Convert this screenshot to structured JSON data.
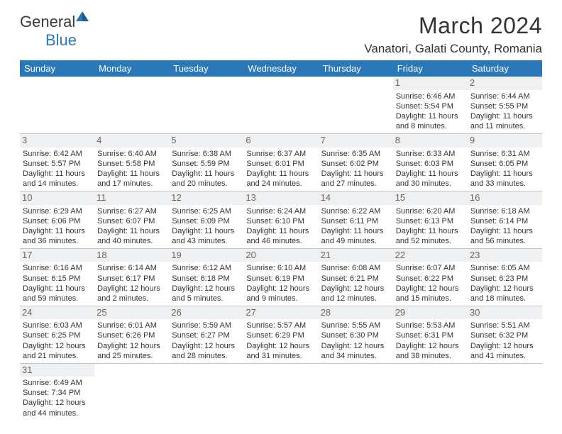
{
  "logo": {
    "text1": "General",
    "text2": "Blue"
  },
  "title": "March 2024",
  "location": "Vanatori, Galati County, Romania",
  "headers": [
    "Sunday",
    "Monday",
    "Tuesday",
    "Wednesday",
    "Thursday",
    "Friday",
    "Saturday"
  ],
  "header_bg": "#2a78b8",
  "header_fg": "#ffffff",
  "grid_color": "#b9c8d6",
  "weeks": [
    [
      null,
      null,
      null,
      null,
      null,
      {
        "n": "1",
        "sr": "Sunrise: 6:46 AM",
        "ss": "Sunset: 5:54 PM",
        "dl": "Daylight: 11 hours and 8 minutes."
      },
      {
        "n": "2",
        "sr": "Sunrise: 6:44 AM",
        "ss": "Sunset: 5:55 PM",
        "dl": "Daylight: 11 hours and 11 minutes."
      }
    ],
    [
      {
        "n": "3",
        "sr": "Sunrise: 6:42 AM",
        "ss": "Sunset: 5:57 PM",
        "dl": "Daylight: 11 hours and 14 minutes."
      },
      {
        "n": "4",
        "sr": "Sunrise: 6:40 AM",
        "ss": "Sunset: 5:58 PM",
        "dl": "Daylight: 11 hours and 17 minutes."
      },
      {
        "n": "5",
        "sr": "Sunrise: 6:38 AM",
        "ss": "Sunset: 5:59 PM",
        "dl": "Daylight: 11 hours and 20 minutes."
      },
      {
        "n": "6",
        "sr": "Sunrise: 6:37 AM",
        "ss": "Sunset: 6:01 PM",
        "dl": "Daylight: 11 hours and 24 minutes."
      },
      {
        "n": "7",
        "sr": "Sunrise: 6:35 AM",
        "ss": "Sunset: 6:02 PM",
        "dl": "Daylight: 11 hours and 27 minutes."
      },
      {
        "n": "8",
        "sr": "Sunrise: 6:33 AM",
        "ss": "Sunset: 6:03 PM",
        "dl": "Daylight: 11 hours and 30 minutes."
      },
      {
        "n": "9",
        "sr": "Sunrise: 6:31 AM",
        "ss": "Sunset: 6:05 PM",
        "dl": "Daylight: 11 hours and 33 minutes."
      }
    ],
    [
      {
        "n": "10",
        "sr": "Sunrise: 6:29 AM",
        "ss": "Sunset: 6:06 PM",
        "dl": "Daylight: 11 hours and 36 minutes."
      },
      {
        "n": "11",
        "sr": "Sunrise: 6:27 AM",
        "ss": "Sunset: 6:07 PM",
        "dl": "Daylight: 11 hours and 40 minutes."
      },
      {
        "n": "12",
        "sr": "Sunrise: 6:25 AM",
        "ss": "Sunset: 6:09 PM",
        "dl": "Daylight: 11 hours and 43 minutes."
      },
      {
        "n": "13",
        "sr": "Sunrise: 6:24 AM",
        "ss": "Sunset: 6:10 PM",
        "dl": "Daylight: 11 hours and 46 minutes."
      },
      {
        "n": "14",
        "sr": "Sunrise: 6:22 AM",
        "ss": "Sunset: 6:11 PM",
        "dl": "Daylight: 11 hours and 49 minutes."
      },
      {
        "n": "15",
        "sr": "Sunrise: 6:20 AM",
        "ss": "Sunset: 6:13 PM",
        "dl": "Daylight: 11 hours and 52 minutes."
      },
      {
        "n": "16",
        "sr": "Sunrise: 6:18 AM",
        "ss": "Sunset: 6:14 PM",
        "dl": "Daylight: 11 hours and 56 minutes."
      }
    ],
    [
      {
        "n": "17",
        "sr": "Sunrise: 6:16 AM",
        "ss": "Sunset: 6:15 PM",
        "dl": "Daylight: 11 hours and 59 minutes."
      },
      {
        "n": "18",
        "sr": "Sunrise: 6:14 AM",
        "ss": "Sunset: 6:17 PM",
        "dl": "Daylight: 12 hours and 2 minutes."
      },
      {
        "n": "19",
        "sr": "Sunrise: 6:12 AM",
        "ss": "Sunset: 6:18 PM",
        "dl": "Daylight: 12 hours and 5 minutes."
      },
      {
        "n": "20",
        "sr": "Sunrise: 6:10 AM",
        "ss": "Sunset: 6:19 PM",
        "dl": "Daylight: 12 hours and 9 minutes."
      },
      {
        "n": "21",
        "sr": "Sunrise: 6:08 AM",
        "ss": "Sunset: 6:21 PM",
        "dl": "Daylight: 12 hours and 12 minutes."
      },
      {
        "n": "22",
        "sr": "Sunrise: 6:07 AM",
        "ss": "Sunset: 6:22 PM",
        "dl": "Daylight: 12 hours and 15 minutes."
      },
      {
        "n": "23",
        "sr": "Sunrise: 6:05 AM",
        "ss": "Sunset: 6:23 PM",
        "dl": "Daylight: 12 hours and 18 minutes."
      }
    ],
    [
      {
        "n": "24",
        "sr": "Sunrise: 6:03 AM",
        "ss": "Sunset: 6:25 PM",
        "dl": "Daylight: 12 hours and 21 minutes."
      },
      {
        "n": "25",
        "sr": "Sunrise: 6:01 AM",
        "ss": "Sunset: 6:26 PM",
        "dl": "Daylight: 12 hours and 25 minutes."
      },
      {
        "n": "26",
        "sr": "Sunrise: 5:59 AM",
        "ss": "Sunset: 6:27 PM",
        "dl": "Daylight: 12 hours and 28 minutes."
      },
      {
        "n": "27",
        "sr": "Sunrise: 5:57 AM",
        "ss": "Sunset: 6:29 PM",
        "dl": "Daylight: 12 hours and 31 minutes."
      },
      {
        "n": "28",
        "sr": "Sunrise: 5:55 AM",
        "ss": "Sunset: 6:30 PM",
        "dl": "Daylight: 12 hours and 34 minutes."
      },
      {
        "n": "29",
        "sr": "Sunrise: 5:53 AM",
        "ss": "Sunset: 6:31 PM",
        "dl": "Daylight: 12 hours and 38 minutes."
      },
      {
        "n": "30",
        "sr": "Sunrise: 5:51 AM",
        "ss": "Sunset: 6:32 PM",
        "dl": "Daylight: 12 hours and 41 minutes."
      }
    ],
    [
      {
        "n": "31",
        "sr": "Sunrise: 6:49 AM",
        "ss": "Sunset: 7:34 PM",
        "dl": "Daylight: 12 hours and 44 minutes."
      },
      null,
      null,
      null,
      null,
      null,
      null
    ]
  ]
}
